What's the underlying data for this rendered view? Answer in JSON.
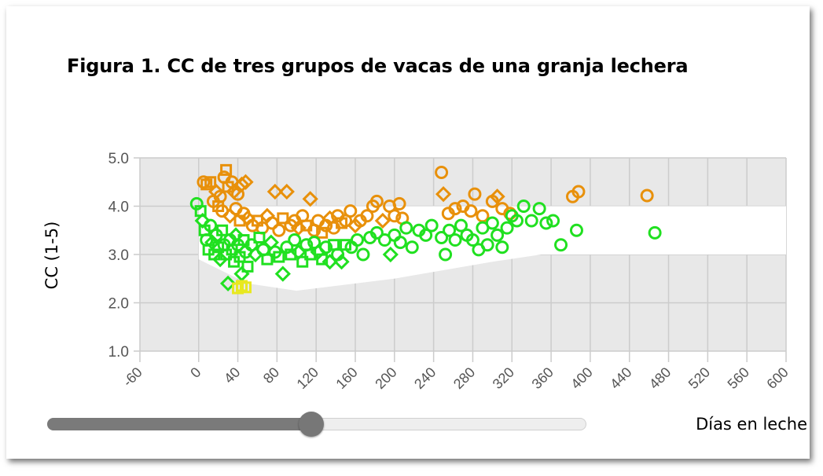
{
  "title": "Figura 1. CC de tres grupos de vacas de una granja lechera",
  "slider": {
    "value_fraction": 0.49
  },
  "colors": {
    "orange": "#e8900a",
    "green": "#20e020",
    "yellow": "#e8e820",
    "plot_bg": "#e8e8e8",
    "band": "#ffffff",
    "grid": "#cccccc"
  },
  "chart_data": {
    "type": "scatter",
    "title": "Figura 1. CC de tres grupos de vacas de una granja lechera",
    "xlabel": "Días en leche",
    "ylabel": "CC (1-5)",
    "xlim": [
      -60,
      600
    ],
    "ylim": [
      1.0,
      5.0
    ],
    "x_ticks": [
      -60,
      0,
      40,
      80,
      120,
      160,
      200,
      240,
      280,
      320,
      360,
      400,
      440,
      480,
      520,
      560,
      600
    ],
    "x_tick_labels": [
      "-60",
      "0",
      "40",
      "80",
      "120",
      "160",
      "200",
      "240",
      "280",
      "320",
      "360",
      "400",
      "440",
      "480",
      "520",
      "560",
      "600"
    ],
    "y_ticks": [
      1.0,
      2.0,
      3.0,
      4.0,
      5.0
    ],
    "y_tick_labels": [
      "1.0",
      "2.0",
      "3.0",
      "4.0",
      "5.0"
    ],
    "grid": true,
    "target_band": {
      "upper": [
        [
          0,
          4.0
        ],
        [
          600,
          4.0
        ]
      ],
      "lower": [
        [
          0,
          2.9
        ],
        [
          50,
          2.4
        ],
        [
          100,
          2.25
        ],
        [
          200,
          2.5
        ],
        [
          300,
          2.85
        ],
        [
          350,
          3.0
        ],
        [
          600,
          3.0
        ]
      ]
    },
    "series": [
      {
        "color": "orange",
        "points": [
          {
            "x": 5,
            "y": 4.5,
            "m": "circle"
          },
          {
            "x": 8,
            "y": 4.45,
            "m": "square"
          },
          {
            "x": 12,
            "y": 4.5,
            "m": "square"
          },
          {
            "x": 18,
            "y": 4.3,
            "m": "diamond"
          },
          {
            "x": 22,
            "y": 4.2,
            "m": "circle"
          },
          {
            "x": 26,
            "y": 4.6,
            "m": "circle"
          },
          {
            "x": 28,
            "y": 4.75,
            "m": "square"
          },
          {
            "x": 30,
            "y": 4.4,
            "m": "square"
          },
          {
            "x": 34,
            "y": 4.5,
            "m": "circle"
          },
          {
            "x": 36,
            "y": 4.3,
            "m": "diamond"
          },
          {
            "x": 40,
            "y": 4.25,
            "m": "circle"
          },
          {
            "x": 44,
            "y": 4.45,
            "m": "diamond"
          },
          {
            "x": 48,
            "y": 4.5,
            "m": "diamond"
          },
          {
            "x": 15,
            "y": 4.1,
            "m": "circle"
          },
          {
            "x": 20,
            "y": 4.0,
            "m": "square"
          },
          {
            "x": 24,
            "y": 3.9,
            "m": "circle"
          },
          {
            "x": 32,
            "y": 3.8,
            "m": "diamond"
          },
          {
            "x": 38,
            "y": 3.95,
            "m": "circle"
          },
          {
            "x": 42,
            "y": 3.7,
            "m": "square"
          },
          {
            "x": 46,
            "y": 3.85,
            "m": "circle"
          },
          {
            "x": 50,
            "y": 3.75,
            "m": "diamond"
          },
          {
            "x": 55,
            "y": 3.6,
            "m": "circle"
          },
          {
            "x": 60,
            "y": 3.7,
            "m": "square"
          },
          {
            "x": 65,
            "y": 3.55,
            "m": "circle"
          },
          {
            "x": 70,
            "y": 3.8,
            "m": "diamond"
          },
          {
            "x": 75,
            "y": 3.65,
            "m": "circle"
          },
          {
            "x": 78,
            "y": 4.3,
            "m": "diamond"
          },
          {
            "x": 82,
            "y": 3.5,
            "m": "circle"
          },
          {
            "x": 86,
            "y": 3.75,
            "m": "square"
          },
          {
            "x": 90,
            "y": 4.3,
            "m": "diamond"
          },
          {
            "x": 94,
            "y": 3.6,
            "m": "circle"
          },
          {
            "x": 98,
            "y": 3.7,
            "m": "circle"
          },
          {
            "x": 102,
            "y": 3.55,
            "m": "diamond"
          },
          {
            "x": 106,
            "y": 3.8,
            "m": "circle"
          },
          {
            "x": 110,
            "y": 3.6,
            "m": "square"
          },
          {
            "x": 114,
            "y": 4.15,
            "m": "diamond"
          },
          {
            "x": 118,
            "y": 3.5,
            "m": "circle"
          },
          {
            "x": 122,
            "y": 3.7,
            "m": "circle"
          },
          {
            "x": 126,
            "y": 3.45,
            "m": "square"
          },
          {
            "x": 130,
            "y": 3.6,
            "m": "circle"
          },
          {
            "x": 134,
            "y": 3.75,
            "m": "diamond"
          },
          {
            "x": 138,
            "y": 3.55,
            "m": "circle"
          },
          {
            "x": 142,
            "y": 3.8,
            "m": "circle"
          },
          {
            "x": 146,
            "y": 3.65,
            "m": "square"
          },
          {
            "x": 150,
            "y": 3.7,
            "m": "circle"
          },
          {
            "x": 155,
            "y": 3.9,
            "m": "circle"
          },
          {
            "x": 160,
            "y": 3.6,
            "m": "diamond"
          },
          {
            "x": 165,
            "y": 3.7,
            "m": "circle"
          },
          {
            "x": 172,
            "y": 3.8,
            "m": "circle"
          },
          {
            "x": 178,
            "y": 4.0,
            "m": "circle"
          },
          {
            "x": 182,
            "y": 4.1,
            "m": "circle"
          },
          {
            "x": 188,
            "y": 3.7,
            "m": "diamond"
          },
          {
            "x": 195,
            "y": 4.0,
            "m": "circle"
          },
          {
            "x": 200,
            "y": 3.8,
            "m": "circle"
          },
          {
            "x": 205,
            "y": 4.05,
            "m": "circle"
          },
          {
            "x": 208,
            "y": 3.75,
            "m": "circle"
          },
          {
            "x": 248,
            "y": 4.7,
            "m": "circle"
          },
          {
            "x": 250,
            "y": 4.25,
            "m": "diamond"
          },
          {
            "x": 255,
            "y": 3.85,
            "m": "circle"
          },
          {
            "x": 262,
            "y": 3.95,
            "m": "circle"
          },
          {
            "x": 270,
            "y": 4.0,
            "m": "circle"
          },
          {
            "x": 278,
            "y": 3.9,
            "m": "circle"
          },
          {
            "x": 282,
            "y": 4.25,
            "m": "circle"
          },
          {
            "x": 290,
            "y": 3.8,
            "m": "circle"
          },
          {
            "x": 300,
            "y": 4.1,
            "m": "circle"
          },
          {
            "x": 305,
            "y": 4.2,
            "m": "diamond"
          },
          {
            "x": 310,
            "y": 3.95,
            "m": "circle"
          },
          {
            "x": 318,
            "y": 3.85,
            "m": "circle"
          },
          {
            "x": 382,
            "y": 4.2,
            "m": "circle"
          },
          {
            "x": 388,
            "y": 4.3,
            "m": "circle"
          },
          {
            "x": 458,
            "y": 4.22,
            "m": "circle"
          }
        ]
      },
      {
        "color": "green",
        "points": [
          {
            "x": -2,
            "y": 4.05,
            "m": "circle"
          },
          {
            "x": 2,
            "y": 3.9,
            "m": "square"
          },
          {
            "x": 4,
            "y": 3.7,
            "m": "diamond"
          },
          {
            "x": 6,
            "y": 3.5,
            "m": "square"
          },
          {
            "x": 8,
            "y": 3.3,
            "m": "circle"
          },
          {
            "x": 10,
            "y": 3.1,
            "m": "square"
          },
          {
            "x": 12,
            "y": 3.6,
            "m": "circle"
          },
          {
            "x": 14,
            "y": 3.25,
            "m": "diamond"
          },
          {
            "x": 16,
            "y": 3.0,
            "m": "square"
          },
          {
            "x": 18,
            "y": 3.4,
            "m": "circle"
          },
          {
            "x": 20,
            "y": 3.15,
            "m": "square"
          },
          {
            "x": 22,
            "y": 2.9,
            "m": "diamond"
          },
          {
            "x": 24,
            "y": 3.5,
            "m": "square"
          },
          {
            "x": 26,
            "y": 3.2,
            "m": "circle"
          },
          {
            "x": 28,
            "y": 3.0,
            "m": "square"
          },
          {
            "x": 30,
            "y": 2.4,
            "m": "diamond"
          },
          {
            "x": 32,
            "y": 3.3,
            "m": "circle"
          },
          {
            "x": 34,
            "y": 3.1,
            "m": "square"
          },
          {
            "x": 36,
            "y": 2.85,
            "m": "square"
          },
          {
            "x": 38,
            "y": 3.4,
            "m": "diamond"
          },
          {
            "x": 40,
            "y": 3.2,
            "m": "circle"
          },
          {
            "x": 42,
            "y": 2.95,
            "m": "square"
          },
          {
            "x": 44,
            "y": 2.6,
            "m": "diamond"
          },
          {
            "x": 46,
            "y": 3.3,
            "m": "square"
          },
          {
            "x": 48,
            "y": 3.05,
            "m": "circle"
          },
          {
            "x": 50,
            "y": 2.75,
            "m": "square"
          },
          {
            "x": 54,
            "y": 3.2,
            "m": "circle"
          },
          {
            "x": 58,
            "y": 3.0,
            "m": "diamond"
          },
          {
            "x": 62,
            "y": 3.35,
            "m": "square"
          },
          {
            "x": 66,
            "y": 3.1,
            "m": "circle"
          },
          {
            "x": 70,
            "y": 2.9,
            "m": "square"
          },
          {
            "x": 74,
            "y": 3.25,
            "m": "diamond"
          },
          {
            "x": 78,
            "y": 3.05,
            "m": "circle"
          },
          {
            "x": 82,
            "y": 2.95,
            "m": "square"
          },
          {
            "x": 86,
            "y": 2.6,
            "m": "diamond"
          },
          {
            "x": 90,
            "y": 3.15,
            "m": "circle"
          },
          {
            "x": 94,
            "y": 3.0,
            "m": "square"
          },
          {
            "x": 98,
            "y": 3.3,
            "m": "circle"
          },
          {
            "x": 102,
            "y": 3.05,
            "m": "diamond"
          },
          {
            "x": 106,
            "y": 2.85,
            "m": "square"
          },
          {
            "x": 110,
            "y": 3.2,
            "m": "circle"
          },
          {
            "x": 114,
            "y": 3.0,
            "m": "square"
          },
          {
            "x": 118,
            "y": 3.25,
            "m": "circle"
          },
          {
            "x": 122,
            "y": 3.05,
            "m": "diamond"
          },
          {
            "x": 126,
            "y": 2.9,
            "m": "square"
          },
          {
            "x": 130,
            "y": 3.15,
            "m": "circle"
          },
          {
            "x": 134,
            "y": 2.85,
            "m": "diamond"
          },
          {
            "x": 138,
            "y": 3.2,
            "m": "square"
          },
          {
            "x": 142,
            "y": 3.0,
            "m": "circle"
          },
          {
            "x": 146,
            "y": 2.85,
            "m": "diamond"
          },
          {
            "x": 150,
            "y": 3.2,
            "m": "square"
          },
          {
            "x": 156,
            "y": 3.15,
            "m": "circle"
          },
          {
            "x": 162,
            "y": 3.3,
            "m": "circle"
          },
          {
            "x": 168,
            "y": 3.0,
            "m": "circle"
          },
          {
            "x": 175,
            "y": 3.35,
            "m": "circle"
          },
          {
            "x": 182,
            "y": 3.45,
            "m": "circle"
          },
          {
            "x": 190,
            "y": 3.3,
            "m": "circle"
          },
          {
            "x": 196,
            "y": 3.0,
            "m": "diamond"
          },
          {
            "x": 200,
            "y": 3.4,
            "m": "circle"
          },
          {
            "x": 206,
            "y": 3.25,
            "m": "circle"
          },
          {
            "x": 212,
            "y": 3.55,
            "m": "circle"
          },
          {
            "x": 218,
            "y": 3.15,
            "m": "circle"
          },
          {
            "x": 225,
            "y": 3.5,
            "m": "circle"
          },
          {
            "x": 232,
            "y": 3.4,
            "m": "circle"
          },
          {
            "x": 238,
            "y": 3.6,
            "m": "circle"
          },
          {
            "x": 248,
            "y": 3.35,
            "m": "circle"
          },
          {
            "x": 252,
            "y": 3.0,
            "m": "circle"
          },
          {
            "x": 256,
            "y": 3.5,
            "m": "circle"
          },
          {
            "x": 262,
            "y": 3.3,
            "m": "circle"
          },
          {
            "x": 268,
            "y": 3.6,
            "m": "circle"
          },
          {
            "x": 274,
            "y": 3.4,
            "m": "circle"
          },
          {
            "x": 280,
            "y": 3.3,
            "m": "circle"
          },
          {
            "x": 286,
            "y": 3.1,
            "m": "circle"
          },
          {
            "x": 290,
            "y": 3.55,
            "m": "circle"
          },
          {
            "x": 295,
            "y": 3.2,
            "m": "circle"
          },
          {
            "x": 300,
            "y": 3.65,
            "m": "circle"
          },
          {
            "x": 305,
            "y": 3.4,
            "m": "circle"
          },
          {
            "x": 310,
            "y": 3.15,
            "m": "circle"
          },
          {
            "x": 315,
            "y": 3.55,
            "m": "circle"
          },
          {
            "x": 320,
            "y": 3.8,
            "m": "circle"
          },
          {
            "x": 325,
            "y": 3.7,
            "m": "circle"
          },
          {
            "x": 332,
            "y": 4.0,
            "m": "circle"
          },
          {
            "x": 340,
            "y": 3.7,
            "m": "circle"
          },
          {
            "x": 348,
            "y": 3.95,
            "m": "circle"
          },
          {
            "x": 355,
            "y": 3.65,
            "m": "circle"
          },
          {
            "x": 362,
            "y": 3.7,
            "m": "circle"
          },
          {
            "x": 370,
            "y": 3.2,
            "m": "circle"
          },
          {
            "x": 386,
            "y": 3.5,
            "m": "circle"
          },
          {
            "x": 466,
            "y": 3.45,
            "m": "circle"
          }
        ]
      },
      {
        "color": "yellow",
        "points": [
          {
            "x": 40,
            "y": 2.3,
            "m": "square"
          },
          {
            "x": 44,
            "y": 2.35,
            "m": "square"
          },
          {
            "x": 48,
            "y": 2.32,
            "m": "square"
          }
        ]
      }
    ]
  }
}
